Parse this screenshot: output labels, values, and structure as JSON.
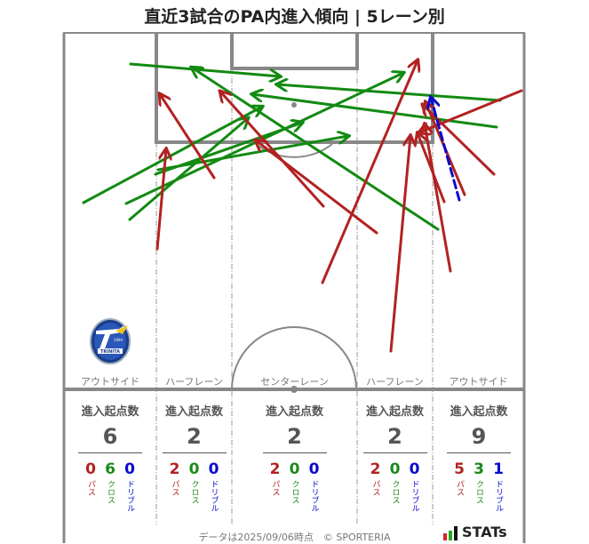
{
  "title": "直近3試合のPA内進入傾向 | 5レーン別",
  "colors": {
    "pass": "#b22222",
    "cross": "#128a12",
    "dribble": "#0a0acc",
    "pitch_line": "#888888"
  },
  "lanes": [
    {
      "label": "アウトサイド"
    },
    {
      "label": "ハーフレーン"
    },
    {
      "label": "センターレーン"
    },
    {
      "label": "ハーフレーン"
    },
    {
      "label": "アウトサイド"
    }
  ],
  "stats": {
    "header_label": "進入起点数",
    "breakdown_labels": {
      "pass": "パス",
      "cross": "クロス",
      "dribble": "ドリブル"
    },
    "columns": [
      {
        "total": "6",
        "pass": "0",
        "cross": "6",
        "dribble": "0"
      },
      {
        "total": "2",
        "pass": "2",
        "cross": "0",
        "dribble": "0"
      },
      {
        "total": "2",
        "pass": "2",
        "cross": "0",
        "dribble": "0"
      },
      {
        "total": "2",
        "pass": "2",
        "cross": "0",
        "dribble": "0"
      },
      {
        "total": "9",
        "pass": "5",
        "cross": "3",
        "dribble": "1"
      }
    ]
  },
  "footer": {
    "text": "データは2025/09/06時点　© SPORTERIA",
    "brand": "STATs"
  },
  "team_logo": {
    "name": "TRINITA",
    "est": "EST 1994",
    "sub": "FC OITA"
  },
  "chart_data": {
    "type": "arrow-map",
    "title": "直近3試合のPA内進入傾向 | 5レーン別",
    "categories": [
      "アウトサイド(左)",
      "ハーフレーン(左)",
      "センターレーン",
      "ハーフレーン(右)",
      "アウトサイド(右)"
    ],
    "series": [
      {
        "name": "パス",
        "values": [
          0,
          2,
          2,
          2,
          5
        ]
      },
      {
        "name": "クロス",
        "values": [
          6,
          0,
          0,
          0,
          3
        ]
      },
      {
        "name": "ドリブル",
        "values": [
          0,
          0,
          0,
          0,
          1
        ]
      }
    ],
    "totals": [
      6,
      2,
      2,
      2,
      9
    ],
    "arrows": [
      {
        "type": "cross",
        "from": [
          147,
          72
        ],
        "to": [
          315,
          86
        ]
      },
      {
        "type": "cross",
        "from": [
          94,
          228
        ],
        "to": [
          295,
          120
        ]
      },
      {
        "type": "cross",
        "from": [
          142,
          229
        ],
        "to": [
          454,
          82
        ]
      },
      {
        "type": "cross",
        "from": [
          146,
          247
        ],
        "to": [
          279,
          133
        ]
      },
      {
        "type": "cross",
        "from": [
          178,
          191
        ],
        "to": [
          392,
          153
        ]
      },
      {
        "type": "cross",
        "from": [
          175,
          196
        ],
        "to": [
          340,
          138
        ]
      },
      {
        "type": "cross",
        "from": [
          563,
          113
        ],
        "to": [
          312,
          95
        ]
      },
      {
        "type": "cross",
        "from": [
          559,
          143
        ],
        "to": [
          284,
          106
        ]
      },
      {
        "type": "cross",
        "from": [
          493,
          258
        ],
        "to": [
          216,
          76
        ]
      },
      {
        "type": "pass",
        "from": [
          177,
          280
        ],
        "to": [
          187,
          168
        ]
      },
      {
        "type": "pass",
        "from": [
          241,
          200
        ],
        "to": [
          180,
          106
        ]
      },
      {
        "type": "pass",
        "from": [
          364,
          232
        ],
        "to": [
          248,
          103
        ]
      },
      {
        "type": "pass",
        "from": [
          424,
          262
        ],
        "to": [
          288,
          158
        ]
      },
      {
        "type": "pass",
        "from": [
          363,
          318
        ],
        "to": [
          470,
          68
        ]
      },
      {
        "type": "pass",
        "from": [
          440,
          395
        ],
        "to": [
          462,
          153
        ]
      },
      {
        "type": "pass",
        "from": [
          507,
          305
        ],
        "to": [
          478,
          140
        ]
      },
      {
        "type": "pass",
        "from": [
          500,
          227
        ],
        "to": [
          470,
          150
        ]
      },
      {
        "type": "pass",
        "from": [
          523,
          219
        ],
        "to": [
          479,
          115
        ]
      },
      {
        "type": "pass",
        "from": [
          556,
          196
        ],
        "to": [
          476,
          118
        ]
      },
      {
        "type": "pass",
        "from": [
          587,
          102
        ],
        "to": [
          472,
          149
        ]
      },
      {
        "type": "dribble",
        "from": [
          517,
          225
        ],
        "to": [
          485,
          110
        ]
      }
    ]
  }
}
